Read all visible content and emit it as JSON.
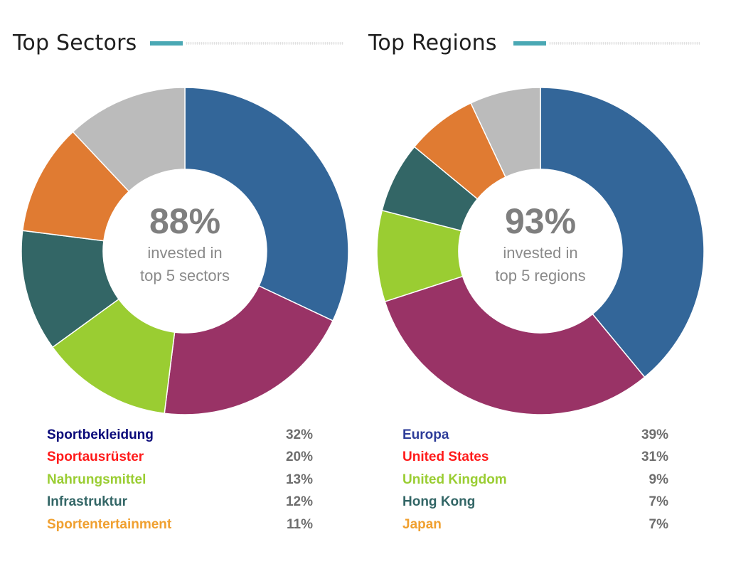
{
  "chart_data": [
    {
      "type": "pie",
      "title": "Top Sectors",
      "center": {
        "value": "88%",
        "line1": "invested in",
        "line2": "top 5 sectors"
      },
      "slices": [
        {
          "label": "Sportbekleidung",
          "value": 32,
          "display": "32%",
          "color": "#336699",
          "label_color": "#0a0a7a"
        },
        {
          "label": "Sportausrüster",
          "value": 20,
          "display": "20%",
          "color": "#993366",
          "label_color": "#ff1a1a"
        },
        {
          "label": "Nahrungsmittel",
          "value": 13,
          "display": "13%",
          "color": "#9acd32",
          "label_color": "#9acd32"
        },
        {
          "label": "Infrastruktur",
          "value": 12,
          "display": "12%",
          "color": "#336666",
          "label_color": "#336666"
        },
        {
          "label": "Sportentertainment",
          "value": 11,
          "display": "11%",
          "color": "#e07b32",
          "label_color": "#f0a030"
        },
        {
          "label": "",
          "value": 12,
          "display": "",
          "color": "#bbbbbb",
          "label_color": "#bbbbbb"
        }
      ]
    },
    {
      "type": "pie",
      "title": "Top Regions",
      "center": {
        "value": "93%",
        "line1": "invested in",
        "line2": "top 5 regions"
      },
      "slices": [
        {
          "label": "Europa",
          "value": 39,
          "display": "39%",
          "color": "#336699",
          "label_color": "#2e3d99"
        },
        {
          "label": "United States",
          "value": 31,
          "display": "31%",
          "color": "#993366",
          "label_color": "#ff1a1a"
        },
        {
          "label": "United Kingdom",
          "value": 9,
          "display": "9%",
          "color": "#9acd32",
          "label_color": "#9acd32"
        },
        {
          "label": "Hong Kong",
          "value": 7,
          "display": "7%",
          "color": "#336666",
          "label_color": "#336666"
        },
        {
          "label": "Japan",
          "value": 7,
          "display": "7%",
          "color": "#e07b32",
          "label_color": "#f0a030"
        },
        {
          "label": "",
          "value": 7,
          "display": "",
          "color": "#bbbbbb",
          "label_color": "#bbbbbb"
        }
      ]
    }
  ],
  "colors": {
    "title_accent": "#4aa8b4",
    "slice_border": "#ffffff"
  }
}
